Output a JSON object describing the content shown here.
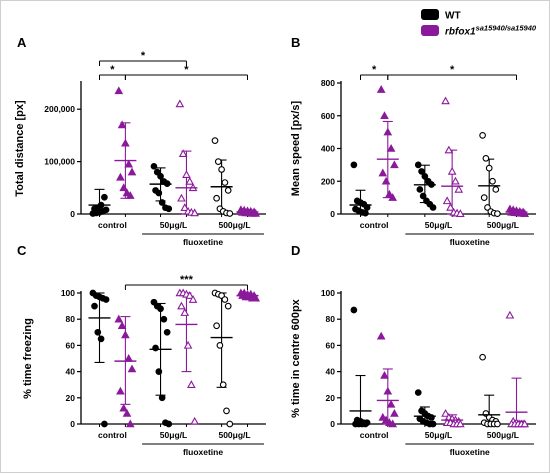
{
  "legend": {
    "entries": [
      {
        "label": "WT",
        "sup": "",
        "color": "#000000"
      },
      {
        "label": "rbfox1",
        "sup": "sa15940/sa15940",
        "color": "#8B1A9B"
      }
    ]
  },
  "colors": {
    "wt": "#000000",
    "mut": "#8B1A9B"
  },
  "chart_data": [
    {
      "panel": "A",
      "type": "scatter",
      "ylabel": "Total distance [px]",
      "ylim": [
        0,
        250000
      ],
      "yticks": [
        0,
        100000,
        200000
      ],
      "ytick_labels": [
        "0",
        "100,000",
        "200,000"
      ],
      "x_group_labels": [
        "control",
        "50μg/L",
        "500μg/L"
      ],
      "x_title": "fluoxetine",
      "groups": [
        {
          "name": "WT control",
          "genotype": "wt",
          "marker": "circle-filled",
          "mean": 17000,
          "sd_low": 1000,
          "sd_high": 47000,
          "values": [
            1000,
            2000,
            3000,
            5000,
            8000,
            10000,
            12000,
            17000,
            32000
          ]
        },
        {
          "name": "mut control",
          "genotype": "mut",
          "marker": "triangle-filled",
          "mean": 102000,
          "sd_low": 30000,
          "sd_high": 174000,
          "values": [
            235000,
            170000,
            135000,
            95000,
            80000,
            70000,
            50000,
            40000,
            35000
          ]
        },
        {
          "name": "WT 50",
          "genotype": "wt",
          "marker": "circle-filled",
          "mean": 57000,
          "sd_low": 25000,
          "sd_high": 88000,
          "values": [
            91000,
            80000,
            72000,
            62000,
            58000,
            45000,
            40000,
            22000,
            12000,
            10000
          ]
        },
        {
          "name": "mut 50",
          "genotype": "mut",
          "marker": "triangle-open",
          "mean": 50000,
          "sd_low": 0,
          "sd_high": 120000,
          "values": [
            210000,
            115000,
            75000,
            62000,
            50000,
            30000,
            12000,
            5000,
            3000,
            2000
          ]
        },
        {
          "name": "WT 500",
          "genotype": "wt",
          "marker": "circle-open",
          "mean": 52000,
          "sd_low": 0,
          "sd_high": 103000,
          "values": [
            140000,
            100000,
            85000,
            60000,
            45000,
            30000,
            10000,
            5000,
            2000,
            1000
          ]
        },
        {
          "name": "mut 500",
          "genotype": "mut",
          "marker": "triangle-filled",
          "mean": 4000,
          "sd_low": 1000,
          "sd_high": 7000,
          "values": [
            8000,
            7000,
            6000,
            5000,
            4000,
            3000,
            2000,
            2000,
            1000,
            1000
          ]
        }
      ],
      "sig": [
        {
          "g1": 0,
          "g2": 1,
          "label": "*",
          "level": 0
        },
        {
          "g1": 0,
          "g2": 3,
          "label": "*",
          "level": 1
        },
        {
          "g1": 1,
          "g2": 5,
          "label": "*",
          "level": 0
        }
      ]
    },
    {
      "panel": "B",
      "type": "scatter",
      "ylabel": "Mean speed [px/s]",
      "ylim": [
        0,
        800
      ],
      "yticks": [
        0,
        200,
        400,
        600,
        800
      ],
      "ytick_labels": [
        "0",
        "200",
        "400",
        "600",
        "800"
      ],
      "x_group_labels": [
        "control",
        "50μg/L",
        "500μg/L"
      ],
      "x_title": "fluoxetine",
      "groups": [
        {
          "name": "WT control",
          "genotype": "wt",
          "marker": "circle-filled",
          "mean": 55000,
          "sd_low": 0,
          "sd_high": 145000,
          "values": [
            300000,
            80000,
            70000,
            60000,
            40000,
            30000,
            20000,
            10000,
            5000
          ]
        },
        {
          "name": "mut control",
          "genotype": "mut",
          "marker": "triangle-filled",
          "mean": 335000,
          "sd_low": 100000,
          "sd_high": 565000,
          "values": [
            760000,
            600000,
            500000,
            400000,
            300000,
            250000,
            200000,
            120000,
            100000
          ]
        },
        {
          "name": "WT 50",
          "genotype": "wt",
          "marker": "circle-filled",
          "mean": 178000,
          "sd_low": 70000,
          "sd_high": 298000,
          "values": [
            300000,
            260000,
            230000,
            200000,
            180000,
            150000,
            110000,
            80000,
            60000,
            40000
          ]
        },
        {
          "name": "mut 50",
          "genotype": "mut",
          "marker": "triangle-open",
          "mean": 170000,
          "sd_low": 0,
          "sd_high": 390000,
          "values": [
            690000,
            390000,
            260000,
            200000,
            150000,
            80000,
            40000,
            10000,
            5000,
            2000
          ]
        },
        {
          "name": "WT 500",
          "genotype": "wt",
          "marker": "circle-open",
          "mean": 172000,
          "sd_low": 0,
          "sd_high": 335000,
          "values": [
            480000,
            340000,
            280000,
            200000,
            150000,
            100000,
            40000,
            15000,
            5000,
            2000
          ]
        },
        {
          "name": "mut 500",
          "genotype": "mut",
          "marker": "triangle-filled",
          "mean": 12000,
          "sd_low": 2000,
          "sd_high": 22000,
          "values": [
            30000,
            25000,
            20000,
            15000,
            12000,
            10000,
            8000,
            6000,
            4000,
            2000
          ]
        }
      ],
      "value_scale": 0.001,
      "sig": [
        {
          "g1": 0,
          "g2": 1,
          "label": "*",
          "level": 0
        },
        {
          "g1": 1,
          "g2": 5,
          "label": "*",
          "level": 0
        }
      ]
    },
    {
      "panel": "C",
      "type": "scatter",
      "ylabel": "% time freezing",
      "ylim": [
        0,
        100
      ],
      "yticks": [
        0,
        20,
        40,
        60,
        80,
        100
      ],
      "ytick_labels": [
        "0",
        "20",
        "40",
        "60",
        "80",
        "100"
      ],
      "x_group_labels": [
        "control",
        "50μg/L",
        "500μg/L"
      ],
      "x_title": "fluoxetine",
      "groups": [
        {
          "name": "WT control",
          "genotype": "wt",
          "marker": "circle-filled",
          "mean": 81,
          "sd_low": 47,
          "sd_high": 100,
          "values": [
            100,
            98,
            97,
            96,
            95,
            90,
            70,
            65,
            0
          ]
        },
        {
          "name": "mut control",
          "genotype": "mut",
          "marker": "triangle-filled",
          "mean": 48,
          "sd_low": 15,
          "sd_high": 82,
          "values": [
            80,
            75,
            68,
            50,
            42,
            25,
            12,
            8,
            0
          ]
        },
        {
          "name": "WT 50",
          "genotype": "wt",
          "marker": "circle-filled",
          "mean": 57,
          "sd_low": 22,
          "sd_high": 92,
          "values": [
            93,
            90,
            88,
            80,
            70,
            58,
            40,
            20,
            1,
            0
          ]
        },
        {
          "name": "mut 50",
          "genotype": "mut",
          "marker": "triangle-open",
          "mean": 76,
          "sd_low": 40,
          "sd_high": 100,
          "values": [
            100,
            100,
            99,
            98,
            95,
            90,
            85,
            60,
            30,
            2
          ]
        },
        {
          "name": "WT 500",
          "genotype": "wt",
          "marker": "circle-open",
          "mean": 66,
          "sd_low": 28,
          "sd_high": 100,
          "values": [
            100,
            99,
            98,
            95,
            90,
            75,
            60,
            30,
            10,
            0
          ]
        },
        {
          "name": "mut 500",
          "genotype": "mut",
          "marker": "triangle-filled",
          "mean": 98,
          "sd_low": 96,
          "sd_high": 100,
          "values": [
            100,
            100,
            99,
            99,
            98,
            98,
            97,
            97,
            96,
            96
          ]
        }
      ],
      "sig": [
        {
          "g1": 1,
          "g2": 5,
          "label": "***",
          "level": 0
        }
      ]
    },
    {
      "panel": "D",
      "type": "scatter",
      "ylabel": "% time in centre 600px",
      "ylim": [
        0,
        100
      ],
      "yticks": [
        0,
        20,
        40,
        60,
        80,
        100
      ],
      "ytick_labels": [
        "0",
        "20",
        "40",
        "60",
        "80",
        "100"
      ],
      "x_group_labels": [
        "control",
        "50μg/L",
        "500μg/L"
      ],
      "x_title": "fluoxetine",
      "groups": [
        {
          "name": "WT control",
          "genotype": "wt",
          "marker": "circle-filled",
          "mean": 10,
          "sd_low": 0,
          "sd_high": 37,
          "values": [
            87,
            3,
            2,
            1,
            1,
            0,
            0,
            0,
            0
          ]
        },
        {
          "name": "mut control",
          "genotype": "mut",
          "marker": "triangle-filled",
          "mean": 18,
          "sd_low": 0,
          "sd_high": 42,
          "values": [
            67,
            37,
            25,
            15,
            8,
            5,
            3,
            1,
            0
          ]
        },
        {
          "name": "WT 50",
          "genotype": "wt",
          "marker": "circle-filled",
          "mean": 6,
          "sd_low": 0,
          "sd_high": 13,
          "values": [
            24,
            10,
            8,
            6,
            5,
            4,
            2,
            1,
            0,
            0
          ]
        },
        {
          "name": "mut 50",
          "genotype": "mut",
          "marker": "triangle-open",
          "mean": 3,
          "sd_low": 0,
          "sd_high": 7,
          "values": [
            8,
            5,
            4,
            3,
            2,
            1,
            1,
            0,
            0,
            0
          ]
        },
        {
          "name": "WT 500",
          "genotype": "wt",
          "marker": "circle-open",
          "mean": 7,
          "sd_low": 0,
          "sd_high": 22,
          "values": [
            51,
            8,
            5,
            3,
            2,
            1,
            0,
            0,
            0,
            0
          ]
        },
        {
          "name": "mut 500",
          "genotype": "mut",
          "marker": "triangle-open",
          "mean": 9,
          "sd_low": 0,
          "sd_high": 35,
          "values": [
            83,
            2,
            1,
            0,
            0,
            0,
            0,
            0,
            0,
            0
          ]
        }
      ],
      "sig": []
    }
  ]
}
